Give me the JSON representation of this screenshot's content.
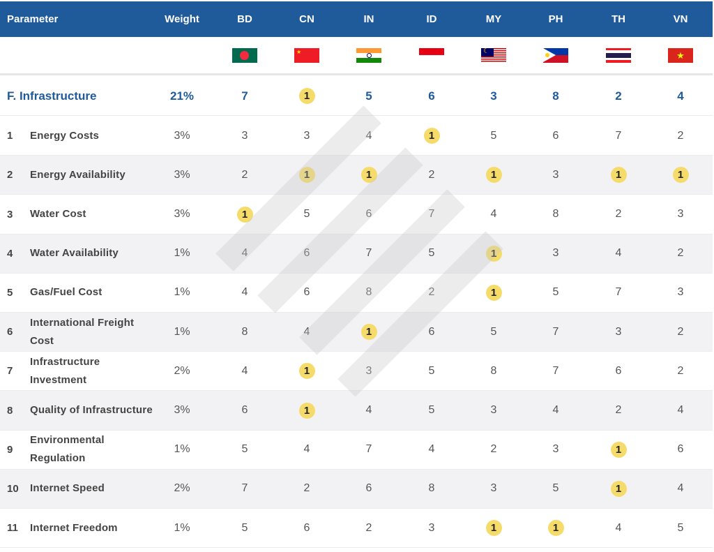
{
  "header": {
    "parameter": "Parameter",
    "weight": "Weight",
    "countries": [
      "BD",
      "CN",
      "IN",
      "ID",
      "MY",
      "PH",
      "TH",
      "VN"
    ]
  },
  "flags": [
    "bangladesh-flag",
    "china-flag",
    "india-flag",
    "indonesia-flag",
    "malaysia-flag",
    "philippines-flag",
    "thailand-flag",
    "vietnam-flag"
  ],
  "category": {
    "label": "F. Infrastructure",
    "weight": "21%",
    "values": [
      "7",
      "1",
      "5",
      "6",
      "3",
      "8",
      "2",
      "4"
    ]
  },
  "rows": [
    {
      "num": "1",
      "label": "Energy Costs",
      "weight": "3%",
      "values": [
        "3",
        "3",
        "4",
        "1",
        "5",
        "6",
        "7",
        "2"
      ]
    },
    {
      "num": "2",
      "label": "Energy Availability",
      "weight": "3%",
      "values": [
        "2",
        "1",
        "1",
        "2",
        "1",
        "3",
        "1",
        "1"
      ]
    },
    {
      "num": "3",
      "label": "Water Cost",
      "weight": "3%",
      "values": [
        "1",
        "5",
        "6",
        "7",
        "4",
        "8",
        "2",
        "3"
      ]
    },
    {
      "num": "4",
      "label": "Water Availability",
      "weight": "1%",
      "values": [
        "4",
        "6",
        "7",
        "5",
        "1",
        "3",
        "4",
        "2"
      ]
    },
    {
      "num": "5",
      "label": "Gas/Fuel Cost",
      "weight": "1%",
      "values": [
        "4",
        "6",
        "8",
        "2",
        "1",
        "5",
        "7",
        "3"
      ]
    },
    {
      "num": "6",
      "label": "International Freight Cost",
      "weight": "1%",
      "values": [
        "8",
        "4",
        "1",
        "6",
        "5",
        "7",
        "3",
        "2"
      ]
    },
    {
      "num": "7",
      "label": "Infrastructure Investment",
      "weight": "2%",
      "values": [
        "4",
        "1",
        "3",
        "5",
        "8",
        "7",
        "6",
        "2"
      ]
    },
    {
      "num": "8",
      "label": "Quality of Infrastructure",
      "weight": "3%",
      "values": [
        "6",
        "1",
        "4",
        "5",
        "3",
        "4",
        "2",
        "4"
      ]
    },
    {
      "num": "9",
      "label": "Environmental Regulation",
      "weight": "1%",
      "values": [
        "5",
        "4",
        "7",
        "4",
        "2",
        "3",
        "1",
        "6"
      ]
    },
    {
      "num": "10",
      "label": "Internet Speed",
      "weight": "2%",
      "values": [
        "7",
        "2",
        "6",
        "8",
        "3",
        "5",
        "1",
        "4"
      ]
    },
    {
      "num": "11",
      "label": "Internet Freedom",
      "weight": "1%",
      "values": [
        "5",
        "6",
        "2",
        "3",
        "1",
        "1",
        "4",
        "5"
      ]
    }
  ],
  "colors": {
    "header_bg": "#1f5a9a",
    "highlight": "#f5dc6a",
    "category_text": "#1f5a9a"
  }
}
